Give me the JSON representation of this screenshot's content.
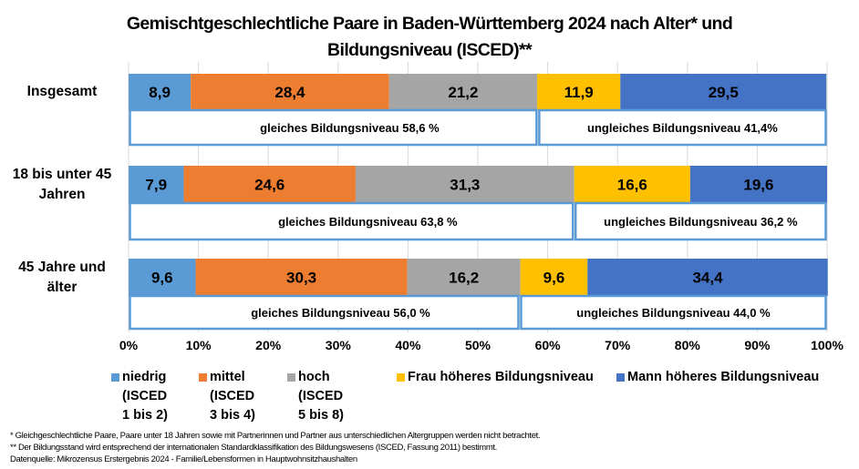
{
  "chart_data": {
    "type": "bar",
    "orientation": "horizontal",
    "stacked": true,
    "title": "Gemischtgeschlechtliche Paare in Baden-Württemberg 2024 nach Alter* und Bildungsniveau (ISCED)**",
    "title_lines": [
      "Gemischtgeschlechtliche Paare in Baden-Württemberg 2024 nach Alter* und",
      "Bildungsniveau (ISCED)**"
    ],
    "categories": [
      "Insgesamt",
      "18 bis unter 45 Jahren",
      "45 Jahre und älter"
    ],
    "category_lines": [
      [
        "Insgesamt"
      ],
      [
        "18 bis unter 45",
        "Jahren"
      ],
      [
        "45 Jahre und",
        "älter"
      ]
    ],
    "series": [
      {
        "name": "niedrig (ISCED 1 bis 2)",
        "color": "#5B9BD5",
        "values": [
          8.9,
          7.9,
          9.6
        ],
        "labels": [
          "8,9",
          "7,9",
          "9,6"
        ]
      },
      {
        "name": "mittel (ISCED 3 bis 4)",
        "color": "#ED7D31",
        "values": [
          28.4,
          24.6,
          30.3
        ],
        "labels": [
          "28,4",
          "24,6",
          "30,3"
        ]
      },
      {
        "name": "hoch (ISCED 5 bis 8)",
        "color": "#A5A5A5",
        "values": [
          21.2,
          31.3,
          16.2
        ],
        "labels": [
          "21,2",
          "31,3",
          "16,2"
        ]
      },
      {
        "name": "Frau höheres Bildungsniveau",
        "color": "#FFC000",
        "values": [
          11.9,
          16.6,
          9.6
        ],
        "labels": [
          "11,9",
          "16,6",
          "9,6"
        ]
      },
      {
        "name": "Mann höheres Bildungsniveau",
        "color": "#4472C4",
        "values": [
          29.5,
          19.6,
          34.4
        ],
        "labels": [
          "29,5",
          "19,6",
          "34,4"
        ]
      }
    ],
    "annotations": [
      {
        "category": "Insgesamt",
        "gleich": {
          "value": 58.6,
          "text": "gleiches Bildungsniveau 58,6 %"
        },
        "ungleich": {
          "value": 41.4,
          "text": "ungleiches Bildungsniveau 41,4%"
        }
      },
      {
        "category": "18 bis unter 45 Jahren",
        "gleich": {
          "value": 63.8,
          "text": "gleiches Bildungsniveau 63,8 %"
        },
        "ungleich": {
          "value": 36.2,
          "text": "ungleiches Bildungsniveau 36,2 %"
        }
      },
      {
        "category": "45 Jahre und älter",
        "gleich": {
          "value": 56.0,
          "text": "gleiches Bildungsniveau 56,0 %"
        },
        "ungleich": {
          "value": 44.0,
          "text": "ungleiches Bildungsniveau 44,0 %"
        }
      }
    ],
    "annotation_box_color": "#5B9BD5",
    "xlabel": "",
    "ylabel": "",
    "xlim": [
      0,
      100
    ],
    "x_ticks": [
      "0%",
      "10%",
      "20%",
      "30%",
      "40%",
      "50%",
      "60%",
      "70%",
      "80%",
      "90%",
      "100%"
    ],
    "grid": true,
    "legend_position": "bottom",
    "legend": [
      {
        "label": "niedrig\n(ISCED\n1 bis 2)",
        "color": "#5B9BD5"
      },
      {
        "label": "mittel\n(ISCED\n3 bis 4)",
        "color": "#ED7D31"
      },
      {
        "label": "hoch\n(ISCED\n5 bis 8)",
        "color": "#A5A5A5"
      },
      {
        "label": "Frau höheres Bildungsniveau",
        "color": "#FFC000"
      },
      {
        "label": "Mann höheres Bildungsniveau",
        "color": "#4472C4"
      }
    ]
  },
  "footnotes": [
    "* Gleichgeschlechtliche Paare, Paare unter 18 Jahren sowie mit Partnerinnen und Partner aus unterschiedlichen Altergruppen werden nicht betrachtet.",
    "** Der Bildungsstand wird entsprechend der internationalen Standardklassifikation des Bildungswesens (ISCED, Fassung 2011) bestimmt.",
    "Datenquelle: Mikrozensus Erstergebnis 2024 - Familie/Lebensformen in Hauptwohnsitzhaushalten"
  ]
}
